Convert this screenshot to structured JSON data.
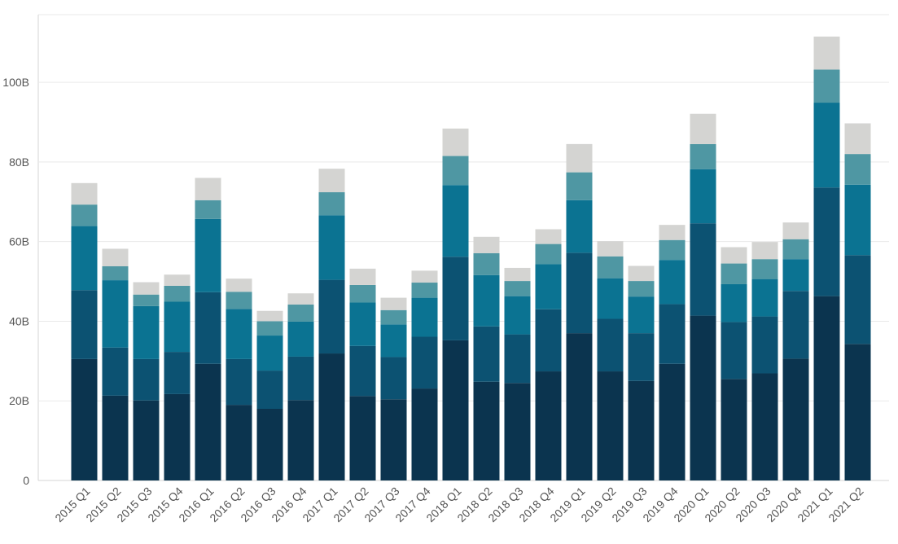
{
  "chart_data": {
    "type": "bar",
    "stacked": true,
    "categories": [
      "2015 Q1",
      "2015 Q2",
      "2015 Q3",
      "2015 Q4",
      "2016 Q1",
      "2016 Q2",
      "2016 Q3",
      "2016 Q4",
      "2017 Q1",
      "2017 Q2",
      "2017 Q3",
      "2017 Q4",
      "2018 Q1",
      "2018 Q2",
      "2018 Q3",
      "2018 Q4",
      "2019 Q1",
      "2019 Q2",
      "2019 Q3",
      "2019 Q4",
      "2020 Q1",
      "2020 Q2",
      "2020 Q3",
      "2020 Q4",
      "2021 Q1",
      "2021 Q2"
    ],
    "series": [
      {
        "color": "#0b344f",
        "values": [
          30.5,
          21.3,
          20.1,
          21.7,
          29.3,
          19.0,
          18.0,
          20.2,
          31.9,
          21.2,
          20.4,
          23.1,
          35.2,
          24.8,
          24.5,
          27.4,
          37.0,
          27.4,
          25.0,
          29.3,
          41.4,
          25.5,
          26.9,
          30.6,
          46.3,
          34.3
        ]
      },
      {
        "color": "#0c5272",
        "values": [
          17.3,
          12.1,
          10.4,
          10.6,
          18.0,
          11.5,
          9.6,
          10.9,
          18.5,
          12.6,
          10.6,
          13.0,
          21.0,
          13.9,
          12.2,
          15.6,
          20.2,
          13.2,
          12.0,
          15.0,
          23.2,
          14.3,
          14.3,
          17.0,
          27.3,
          22.3
        ]
      },
      {
        "color": "#0b7392",
        "values": [
          16.1,
          16.9,
          13.3,
          12.6,
          18.4,
          12.6,
          8.8,
          8.8,
          16.2,
          10.9,
          8.2,
          9.8,
          18.0,
          12.9,
          9.6,
          11.3,
          13.2,
          10.2,
          9.2,
          11.1,
          13.6,
          9.5,
          9.4,
          8.0,
          21.3,
          17.7
        ]
      },
      {
        "color": "#4f97a3",
        "values": [
          5.4,
          3.5,
          2.9,
          4.0,
          4.7,
          4.3,
          3.6,
          4.3,
          5.8,
          4.4,
          3.6,
          3.8,
          7.3,
          5.5,
          3.8,
          5.1,
          7.0,
          5.5,
          3.9,
          5.0,
          6.3,
          5.2,
          5.0,
          5.0,
          8.3,
          7.7
        ]
      },
      {
        "color": "#d4d4d2",
        "values": [
          5.4,
          4.4,
          3.1,
          2.8,
          5.6,
          3.3,
          2.6,
          2.8,
          5.9,
          4.1,
          3.1,
          3.0,
          6.9,
          4.1,
          3.3,
          3.7,
          7.1,
          3.8,
          3.8,
          3.8,
          7.6,
          4.1,
          4.3,
          4.2,
          8.3,
          7.7
        ]
      }
    ],
    "yticks": [
      "0",
      "20B",
      "40B",
      "60B",
      "80B",
      "100B"
    ],
    "ytick_values": [
      0,
      20,
      40,
      60,
      80,
      100
    ],
    "ylim": [
      0,
      117
    ],
    "grid": true,
    "legend": "none",
    "title": "",
    "xlabel": "",
    "ylabel": ""
  }
}
